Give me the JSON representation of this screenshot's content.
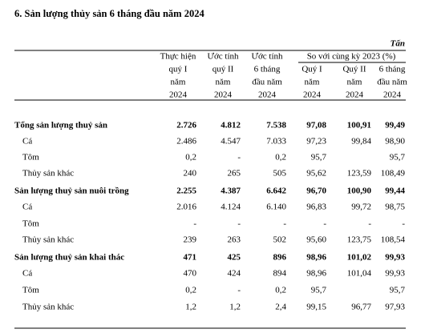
{
  "title": "6. Sản lượng thủy sản 6 tháng đầu năm 2024",
  "unit": "Tấn",
  "header": {
    "columns": [
      [
        "Thực hiện",
        "quý I",
        "năm",
        "2024"
      ],
      [
        "Ước tính",
        "quý II",
        "năm",
        "2024"
      ],
      [
        "Ước tính",
        "6 tháng",
        "đầu năm",
        "2024"
      ]
    ],
    "group": "So với cùng kỳ 2023  (%)",
    "subcolumns": [
      [
        "Quý I",
        "năm",
        "2024"
      ],
      [
        "Quý II",
        "năm",
        "2024"
      ],
      [
        "6 tháng",
        "đầu năm",
        "2024"
      ]
    ]
  },
  "table": {
    "rows": [
      {
        "label": "Tổng sản lượng thuỷ sản",
        "bold": true,
        "cells": [
          "2.726",
          "4.812",
          "7.538",
          "97,08",
          "100,91",
          "99,49"
        ]
      },
      {
        "label": "Cá",
        "bold": false,
        "cells": [
          "2.486",
          "4.547",
          "7.033",
          "97,23",
          "99,84",
          "98,90"
        ]
      },
      {
        "label": "Tôm",
        "bold": false,
        "cells": [
          "0,2",
          "-",
          "0,2",
          "95,7",
          null,
          "95,7"
        ]
      },
      {
        "label": "Thủy sản khác",
        "bold": false,
        "cells": [
          "240",
          "265",
          "505",
          "95,62",
          "123,59",
          "108,49"
        ]
      },
      {
        "label": "Sản lượng thuỷ sản nuôi trồng",
        "bold": true,
        "cells": [
          "2.255",
          "4.387",
          "6.642",
          "96,70",
          "100,90",
          "99,44"
        ]
      },
      {
        "label": "Cá",
        "bold": false,
        "cells": [
          "2.016",
          "4.124",
          "6.140",
          "96,83",
          "99,72",
          "98,75"
        ]
      },
      {
        "label": "Tôm",
        "bold": false,
        "cells": [
          "-",
          "-",
          "-",
          "-",
          "-",
          "-"
        ]
      },
      {
        "label": "Thủy sản khác",
        "bold": false,
        "cells": [
          "239",
          "263",
          "502",
          "95,60",
          "123,75",
          "108,54"
        ]
      },
      {
        "label": "Sản lượng thuỷ sản khai thác",
        "bold": true,
        "cells": [
          "471",
          "425",
          "896",
          "98,96",
          "101,02",
          "99,93"
        ]
      },
      {
        "label": "Cá",
        "bold": false,
        "cells": [
          "470",
          "424",
          "894",
          "98,96",
          "101,04",
          "99,93"
        ]
      },
      {
        "label": "Tôm",
        "bold": false,
        "cells": [
          "0,2",
          "-",
          "0,2",
          "95,7",
          null,
          "95,7"
        ]
      },
      {
        "label": "Thủy sản khác",
        "bold": false,
        "cells": [
          "1,2",
          "1,2",
          "2,4",
          "99,15",
          "96,77",
          "97,93"
        ]
      }
    ]
  }
}
